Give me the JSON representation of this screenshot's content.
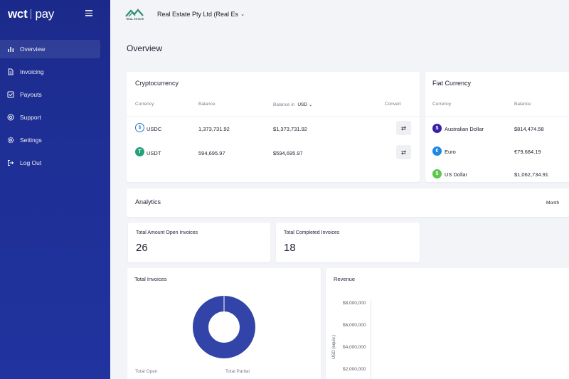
{
  "brand": {
    "part1": "wct",
    "part2": "pay"
  },
  "sidebar": {
    "items": [
      {
        "label": "Overview",
        "icon": "bar-chart-icon",
        "active": true
      },
      {
        "label": "Invoicing",
        "icon": "document-icon",
        "active": false
      },
      {
        "label": "Payouts",
        "icon": "check-square-icon",
        "active": false
      },
      {
        "label": "Support",
        "icon": "lifebuoy-icon",
        "active": false
      },
      {
        "label": "Settings",
        "icon": "gear-icon",
        "active": false
      },
      {
        "label": "Log Out",
        "icon": "logout-icon",
        "active": false
      }
    ]
  },
  "topbar": {
    "logo_text": "REAL ESTATE",
    "org_name": "Real Estate Pty Ltd (Real Es",
    "org_chevron": "⌄"
  },
  "page": {
    "title": "Overview"
  },
  "crypto": {
    "title": "Cryptocurrency",
    "headers": {
      "currency": "Currency",
      "balance": "Balance",
      "balance_in": "Balance in",
      "balance_in_currency": "USD",
      "convert": "Convert"
    },
    "rows": [
      {
        "symbol": "USDC",
        "balance": "1,373,731.92",
        "balance_usd": "$1,373,731.92",
        "icon": "usdc-icon"
      },
      {
        "symbol": "USDT",
        "balance": "594,695.97",
        "balance_usd": "$594,695.97",
        "icon": "usdt-icon"
      }
    ]
  },
  "fiat": {
    "title": "Fiat Currency",
    "headers": {
      "currency": "Currency",
      "balance": "Balance"
    },
    "rows": [
      {
        "name": "Australian Dollar",
        "balance": "$814,474.58",
        "glyph": "$",
        "color": "#3b1fa8"
      },
      {
        "name": "Euro",
        "balance": "€79,684.19",
        "glyph": "€",
        "color": "#1e88e5"
      },
      {
        "name": "US Dollar",
        "balance": "$1,062,734.91",
        "glyph": "$",
        "color": "#5ec64a"
      }
    ]
  },
  "analytics": {
    "title": "Analytics",
    "period": "Month"
  },
  "stats": [
    {
      "label": "Total Amount Open Invoices",
      "value": "26"
    },
    {
      "label": "Total Completed Invoices",
      "value": "18"
    }
  ],
  "total_invoices": {
    "title": "Total Invoices",
    "legend": [
      "Total Open",
      "Total Partial"
    ],
    "donut_color": "#3344a8"
  },
  "revenue": {
    "title": "Revenue",
    "y_ticks": [
      "$8,000,000",
      "$6,000,000",
      "$4,000,000",
      "$2,000,000"
    ],
    "y_label": "USD (equiv.)"
  }
}
